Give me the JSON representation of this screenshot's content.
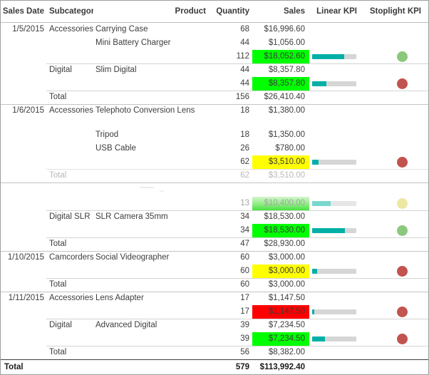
{
  "header": {
    "columns": [
      "Sales Date",
      "Subcategory",
      "Product",
      "Quantity",
      "Sales",
      "Linear KPI",
      "Stoplight KPI"
    ]
  },
  "colors": {
    "sales_green": "#00ff00",
    "sales_yellow": "#ffff00",
    "sales_red": "#ff0000",
    "kpi_bar_fill": "#00b0a7",
    "kpi_bar_track": "#d6d6d6",
    "stoplight_green": "#8bc87d",
    "stoplight_red": "#c1544e",
    "stoplight_pale_yellow": "#ece7a2"
  },
  "rows": [
    {
      "type": "detail",
      "date": "1/5/2015",
      "subcategory": "Accessories",
      "product": "Carrying Case",
      "quantity": "68",
      "sales": "$16,996.60",
      "sales_bg": "",
      "bar_pct": null,
      "light": "",
      "border": ""
    },
    {
      "type": "detail",
      "date": "",
      "subcategory": "",
      "product": "Mini Battery Charger",
      "quantity": "44",
      "sales": "$1,056.00",
      "sales_bg": "",
      "bar_pct": null,
      "light": "",
      "border": ""
    },
    {
      "type": "subtotal",
      "date": "",
      "subcategory": "",
      "product": "",
      "quantity": "112",
      "sales": "$18,052.60",
      "sales_bg": "green",
      "bar_pct": 72,
      "light": "green",
      "border": ""
    },
    {
      "type": "detail",
      "date": "",
      "subcategory": "Digital",
      "product": "Slim Digital",
      "quantity": "44",
      "sales": "$8,357.80",
      "sales_bg": "",
      "bar_pct": null,
      "light": "",
      "border": "inner"
    },
    {
      "type": "subtotal",
      "date": "",
      "subcategory": "",
      "product": "",
      "quantity": "44",
      "sales": "$8,357.80",
      "sales_bg": "green",
      "bar_pct": 33,
      "light": "red",
      "border": ""
    },
    {
      "type": "group-total",
      "date": "",
      "subcategory": "Total",
      "product": "",
      "quantity": "156",
      "sales": "$26,410.40",
      "sales_bg": "",
      "bar_pct": null,
      "light": "",
      "border": "inner"
    },
    {
      "type": "detail-tall",
      "date": "1/6/2015",
      "subcategory": "Accessories",
      "product": "Telephoto Conversion Lens",
      "quantity": "18",
      "sales": "$1,380.00",
      "sales_bg": "",
      "bar_pct": null,
      "light": "",
      "border": "full"
    },
    {
      "type": "detail",
      "date": "",
      "subcategory": "",
      "product": "Tripod",
      "quantity": "18",
      "sales": "$1,350.00",
      "sales_bg": "",
      "bar_pct": null,
      "light": "",
      "border": ""
    },
    {
      "type": "detail",
      "date": "",
      "subcategory": "",
      "product": "USB Cable",
      "quantity": "26",
      "sales": "$780.00",
      "sales_bg": "",
      "bar_pct": null,
      "light": "",
      "border": ""
    },
    {
      "type": "subtotal",
      "date": "",
      "subcategory": "",
      "product": "",
      "quantity": "62",
      "sales": "$3,510.00",
      "sales_bg": "yellow",
      "bar_pct": 14,
      "light": "red",
      "border": ""
    },
    {
      "type": "group-total-faded",
      "date": "",
      "subcategory": "Total",
      "product": "",
      "quantity": "62",
      "sales": "$3,510.00",
      "sales_bg": "",
      "bar_pct": null,
      "light": "",
      "border": "faint"
    },
    {
      "type": "ghost-spacer",
      "date": "",
      "subcategory": "",
      "product": "",
      "quantity": "",
      "sales": "",
      "sales_bg": "",
      "bar_pct": null,
      "light": "",
      "border": "full"
    },
    {
      "type": "ghost-subtotal",
      "date": "",
      "subcategory": "",
      "product": "",
      "quantity": "13",
      "sales": "$10,400.00",
      "sales_bg": "ghostgreen",
      "bar_pct": 42,
      "light": "ghostyellow",
      "border": ""
    },
    {
      "type": "detail",
      "date": "",
      "subcategory": "Digital SLR",
      "product": "SLR Camera 35mm",
      "quantity": "34",
      "sales": "$18,530.00",
      "sales_bg": "",
      "bar_pct": null,
      "light": "",
      "border": "inner"
    },
    {
      "type": "subtotal",
      "date": "",
      "subcategory": "",
      "product": "",
      "quantity": "34",
      "sales": "$18,530.00",
      "sales_bg": "green",
      "bar_pct": 74,
      "light": "green",
      "border": ""
    },
    {
      "type": "group-total",
      "date": "",
      "subcategory": "Total",
      "product": "",
      "quantity": "47",
      "sales": "$28,930.00",
      "sales_bg": "",
      "bar_pct": null,
      "light": "",
      "border": "inner"
    },
    {
      "type": "detail",
      "date": "1/10/2015",
      "subcategory": "Camcorders",
      "product": "Social Videographer",
      "quantity": "60",
      "sales": "$3,000.00",
      "sales_bg": "",
      "bar_pct": null,
      "light": "",
      "border": "full"
    },
    {
      "type": "subtotal",
      "date": "",
      "subcategory": "",
      "product": "",
      "quantity": "60",
      "sales": "$3,000.00",
      "sales_bg": "yellow",
      "bar_pct": 12,
      "light": "red",
      "border": ""
    },
    {
      "type": "group-total",
      "date": "",
      "subcategory": "Total",
      "product": "",
      "quantity": "60",
      "sales": "$3,000.00",
      "sales_bg": "",
      "bar_pct": null,
      "light": "",
      "border": "inner"
    },
    {
      "type": "detail",
      "date": "1/11/2015",
      "subcategory": "Accessories",
      "product": "Lens Adapter",
      "quantity": "17",
      "sales": "$1,147.50",
      "sales_bg": "",
      "bar_pct": null,
      "light": "",
      "border": "full"
    },
    {
      "type": "subtotal",
      "date": "",
      "subcategory": "",
      "product": "",
      "quantity": "17",
      "sales": "$1,147.50",
      "sales_bg": "red",
      "bar_pct": 5,
      "light": "red",
      "border": ""
    },
    {
      "type": "detail",
      "date": "",
      "subcategory": "Digital",
      "product": "Advanced Digital",
      "quantity": "39",
      "sales": "$7,234.50",
      "sales_bg": "",
      "bar_pct": null,
      "light": "",
      "border": "inner"
    },
    {
      "type": "subtotal",
      "date": "",
      "subcategory": "",
      "product": "",
      "quantity": "39",
      "sales": "$7,234.50",
      "sales_bg": "green",
      "bar_pct": 29,
      "light": "red",
      "border": ""
    },
    {
      "type": "group-total",
      "date": "",
      "subcategory": "Total",
      "product": "",
      "quantity": "56",
      "sales": "$8,382.00",
      "sales_bg": "",
      "bar_pct": null,
      "light": "",
      "border": "inner"
    },
    {
      "type": "grand-total",
      "date": "Total",
      "subcategory": "",
      "product": "",
      "quantity": "579",
      "sales": "$113,992.40",
      "sales_bg": "",
      "bar_pct": null,
      "light": "",
      "border": "dark"
    }
  ]
}
